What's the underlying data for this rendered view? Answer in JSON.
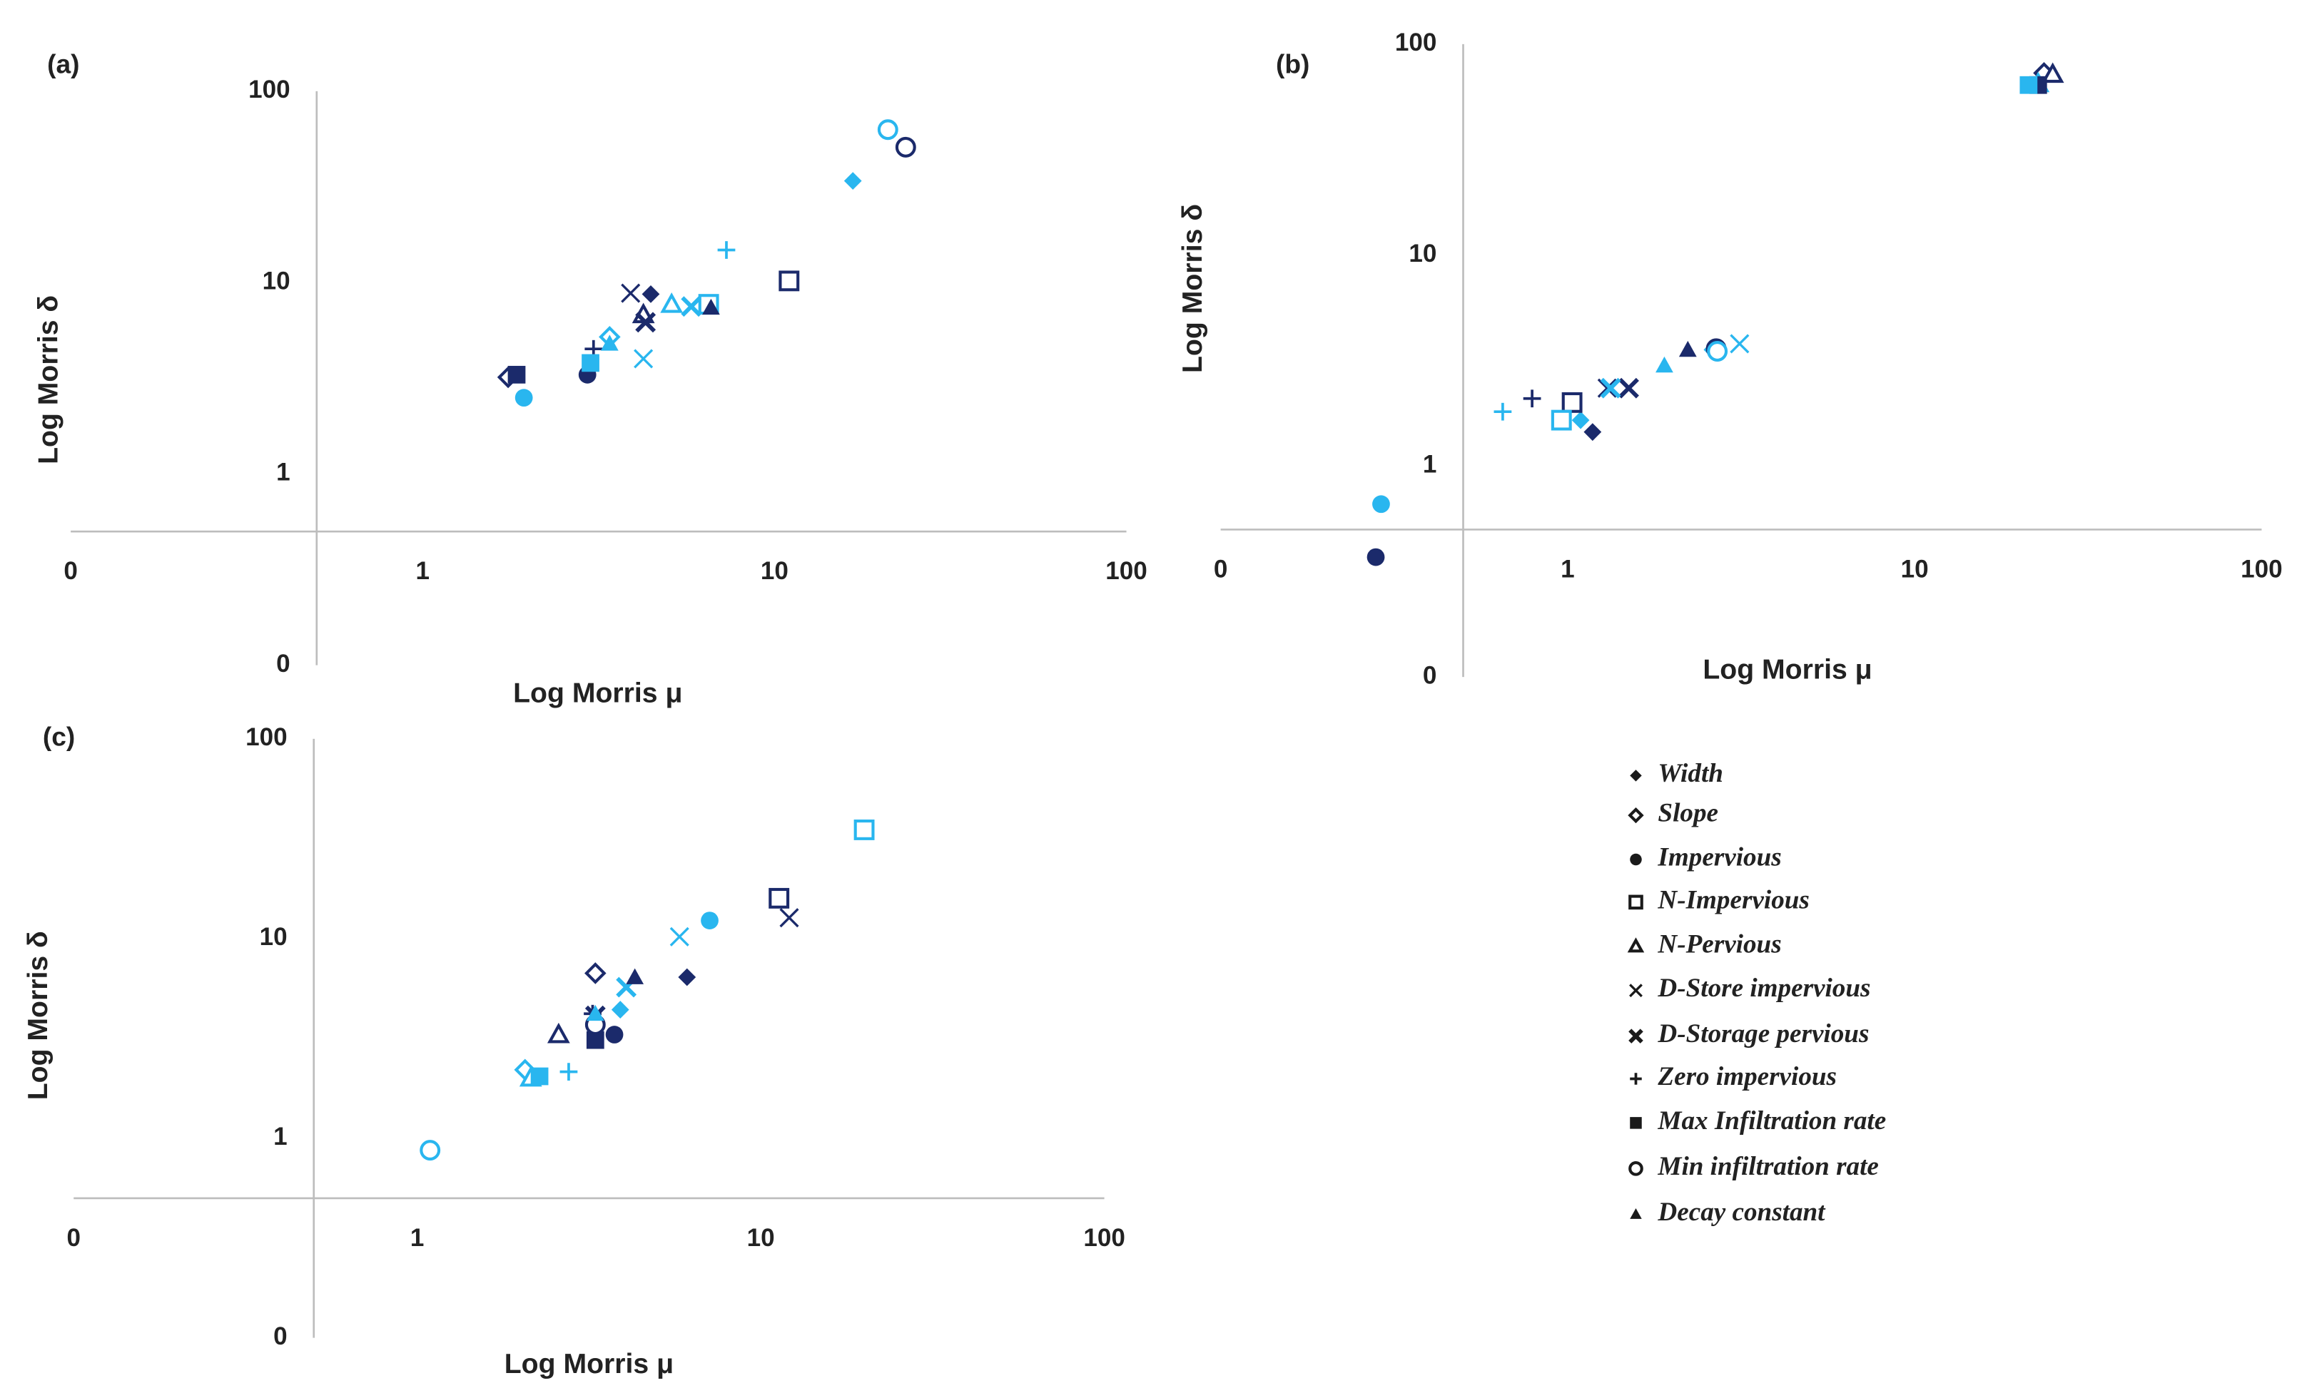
{
  "chart_data": [
    {
      "type": "scatter",
      "title": "(a)",
      "x_label": "Log Morris μ",
      "y_label": "Log Morris δ",
      "log_x": true,
      "log_y": true,
      "axis_cross": 0.5,
      "xlim": [
        0.1,
        100
      ],
      "ylim": [
        0.1,
        100
      ],
      "xticks": [
        {
          "value": 0.1,
          "label": "0"
        },
        1,
        10,
        100
      ],
      "yticks": [
        {
          "value": 0.1,
          "label": "0"
        },
        1,
        10,
        100
      ],
      "series": [
        {
          "marker": "diamond",
          "colors": [
            "#1b2a6b",
            "#29b6ef"
          ],
          "x": [
            4.45,
            16.7
          ],
          "values": [
            8.7,
            34
          ]
        },
        {
          "marker": "diamond-open",
          "colors": [
            "#1b2a6b",
            "#29b6ef"
          ],
          "x": [
            1.75,
            3.4
          ],
          "values": [
            3.2,
            5.2
          ]
        },
        {
          "marker": "circle",
          "colors": [
            "#1b2a6b",
            "#29b6ef"
          ],
          "x": [
            2.94,
            1.94
          ],
          "values": [
            3.3,
            2.5
          ]
        },
        {
          "marker": "square-open",
          "colors": [
            "#1b2a6b",
            "#29b6ef"
          ],
          "x": [
            11,
            6.5
          ],
          "values": [
            10.2,
            7.7
          ]
        },
        {
          "marker": "triangle-open",
          "colors": [
            "#1b2a6b",
            "#29b6ef"
          ],
          "x": [
            4.24,
            5.1
          ],
          "values": [
            6.8,
            7.7
          ]
        },
        {
          "marker": "x",
          "colors": [
            "#1b2a6b",
            "#29b6ef"
          ],
          "x": [
            3.9,
            4.24
          ],
          "values": [
            8.8,
            4.0
          ]
        },
        {
          "marker": "x-bold",
          "colors": [
            "#1b2a6b",
            "#29b6ef"
          ],
          "x": [
            4.3,
            5.8
          ],
          "values": [
            6.2,
            7.5
          ]
        },
        {
          "marker": "plus",
          "colors": [
            "#1b2a6b",
            "#29b6ef"
          ],
          "x": [
            3.06,
            7.3
          ],
          "values": [
            4.5,
            14.8
          ]
        },
        {
          "marker": "square",
          "colors": [
            "#1b2a6b",
            "#29b6ef"
          ],
          "x": [
            1.85,
            3.0
          ],
          "values": [
            3.3,
            3.8
          ]
        },
        {
          "marker": "circle-open",
          "colors": [
            "#1b2a6b",
            "#29b6ef"
          ],
          "x": [
            23.6,
            21
          ],
          "values": [
            51,
            63
          ]
        },
        {
          "marker": "triangle",
          "colors": [
            "#1b2a6b",
            "#29b6ef"
          ],
          "x": [
            6.6,
            3.4
          ],
          "values": [
            7.4,
            4.8
          ]
        }
      ]
    },
    {
      "type": "scatter",
      "title": "(b)",
      "x_label": "Log Morris μ",
      "y_label": "Log Morris δ",
      "log_x": true,
      "log_y": true,
      "axis_cross": 0.5,
      "xlim": [
        0.1,
        100
      ],
      "ylim": [
        0.1,
        100
      ],
      "xticks": [
        {
          "value": 0.1,
          "label": "0"
        },
        1,
        10,
        100
      ],
      "yticks": [
        {
          "value": 0.1,
          "label": "0"
        },
        1,
        10,
        100
      ],
      "series": [
        {
          "marker": "diamond",
          "colors": [
            "#1b2a6b",
            "#29b6ef"
          ],
          "x": [
            1.18,
            1.09
          ],
          "values": [
            1.45,
            1.65
          ]
        },
        {
          "marker": "diamond-open",
          "colors": [
            "#1b2a6b",
            "#29b6ef"
          ],
          "x": [
            23.6,
            2.65
          ],
          "values": [
            73,
            3.56
          ]
        },
        {
          "marker": "circle",
          "colors": [
            "#1b2a6b",
            "#29b6ef"
          ],
          "x": [
            0.28,
            0.29
          ],
          "values": [
            0.37,
            0.66
          ]
        },
        {
          "marker": "square-open",
          "colors": [
            "#1b2a6b",
            "#29b6ef"
          ],
          "x": [
            1.03,
            0.96
          ],
          "values": [
            2.0,
            1.65
          ]
        },
        {
          "marker": "triangle-open",
          "colors": [
            "#1b2a6b",
            "#29b6ef"
          ],
          "x": [
            25,
            22.7
          ],
          "values": [
            72,
            65
          ]
        },
        {
          "marker": "x",
          "colors": [
            "#1b2a6b",
            "#29b6ef"
          ],
          "x": [
            1.3,
            3.13
          ],
          "values": [
            2.34,
            3.8
          ]
        },
        {
          "marker": "x-bold",
          "colors": [
            "#1b2a6b",
            "#29b6ef"
          ],
          "x": [
            1.5,
            1.33
          ],
          "values": [
            2.34,
            2.34
          ]
        },
        {
          "marker": "plus",
          "colors": [
            "#1b2a6b",
            "#29b6ef"
          ],
          "x": [
            0.79,
            0.65
          ],
          "values": [
            2.09,
            1.81
          ]
        },
        {
          "marker": "square",
          "colors": [
            "#1b2a6b",
            "#29b6ef"
          ],
          "x": [
            22.7,
            21.3
          ],
          "values": [
            64,
            64
          ]
        },
        {
          "marker": "circle-open",
          "colors": [
            "#1b2a6b",
            "#29b6ef"
          ],
          "x": [
            2.68,
            2.7
          ],
          "values": [
            3.6,
            3.5
          ]
        },
        {
          "marker": "triangle",
          "colors": [
            "#1b2a6b",
            "#29b6ef"
          ],
          "x": [
            2.22,
            1.9
          ],
          "values": [
            3.56,
            3.0
          ]
        }
      ]
    },
    {
      "type": "scatter",
      "title": "(c)",
      "x_label": "Log Morris μ",
      "y_label": "Log Morris δ",
      "log_x": true,
      "log_y": true,
      "axis_cross": 0.5,
      "xlim": [
        0.1,
        100
      ],
      "ylim": [
        0.1,
        100
      ],
      "xticks": [
        {
          "value": 0.1,
          "label": "0"
        },
        1,
        10,
        100
      ],
      "yticks": [
        {
          "value": 0.1,
          "label": "0"
        },
        1,
        10,
        100
      ],
      "series": [
        {
          "marker": "diamond",
          "colors": [
            "#1b2a6b",
            "#29b6ef"
          ],
          "x": [
            6.1,
            3.9
          ],
          "values": [
            6.4,
            4.4
          ]
        },
        {
          "marker": "diamond-open",
          "colors": [
            "#1b2a6b",
            "#29b6ef"
          ],
          "x": [
            3.3,
            2.06
          ],
          "values": [
            6.7,
            2.2
          ]
        },
        {
          "marker": "circle",
          "colors": [
            "#1b2a6b",
            "#29b6ef"
          ],
          "x": [
            3.75,
            7.1
          ],
          "values": [
            3.3,
            12.3
          ]
        },
        {
          "marker": "square-open",
          "colors": [
            "#1b2a6b",
            "#29b6ef"
          ],
          "x": [
            11.3,
            20
          ],
          "values": [
            15.9,
            35
          ]
        },
        {
          "marker": "triangle-open",
          "colors": [
            "#1b2a6b",
            "#29b6ef"
          ],
          "x": [
            2.58,
            2.14
          ],
          "values": [
            3.3,
            2.0
          ]
        },
        {
          "marker": "x",
          "colors": [
            "#1b2a6b",
            "#29b6ef"
          ],
          "x": [
            12.1,
            5.8
          ],
          "values": [
            12.7,
            10.2
          ]
        },
        {
          "marker": "x-bold",
          "colors": [
            "#1b2a6b",
            "#29b6ef"
          ],
          "x": [
            3.3,
            4.06
          ],
          "values": [
            4.1,
            5.7
          ]
        },
        {
          "marker": "plus",
          "colors": [
            "#1b2a6b",
            "#29b6ef"
          ],
          "x": [
            3.24,
            2.76
          ],
          "values": [
            4.2,
            2.15
          ]
        },
        {
          "marker": "square",
          "colors": [
            "#1b2a6b",
            "#29b6ef"
          ],
          "x": [
            3.3,
            2.27
          ],
          "values": [
            3.1,
            2.04
          ]
        },
        {
          "marker": "circle-open",
          "colors": [
            "#1b2a6b",
            "#29b6ef"
          ],
          "x": [
            3.3,
            1.09
          ],
          "values": [
            3.7,
            0.87
          ]
        },
        {
          "marker": "triangle",
          "colors": [
            "#1b2a6b",
            "#29b6ef"
          ],
          "x": [
            4.3,
            3.3
          ],
          "values": [
            6.4,
            4.2
          ]
        }
      ]
    }
  ],
  "legend": {
    "color": "#1a1a1a",
    "entries": [
      {
        "name": "Width",
        "marker": "diamond"
      },
      {
        "name": "Slope",
        "marker": "diamond-open"
      },
      {
        "name": "Impervious",
        "marker": "circle"
      },
      {
        "name": "N-Impervious",
        "marker": "square-open"
      },
      {
        "name": "N-Pervious",
        "marker": "triangle-open"
      },
      {
        "name": "D-Store impervious",
        "marker": "x"
      },
      {
        "name": "D-Storage pervious",
        "marker": "x-bold"
      },
      {
        "name": "Zero impervious",
        "marker": "plus"
      },
      {
        "name": "Max Infiltration rate",
        "marker": "square"
      },
      {
        "name": "Min infiltration rate",
        "marker": "circle-open"
      },
      {
        "name": "Decay constant",
        "marker": "triangle"
      }
    ]
  }
}
